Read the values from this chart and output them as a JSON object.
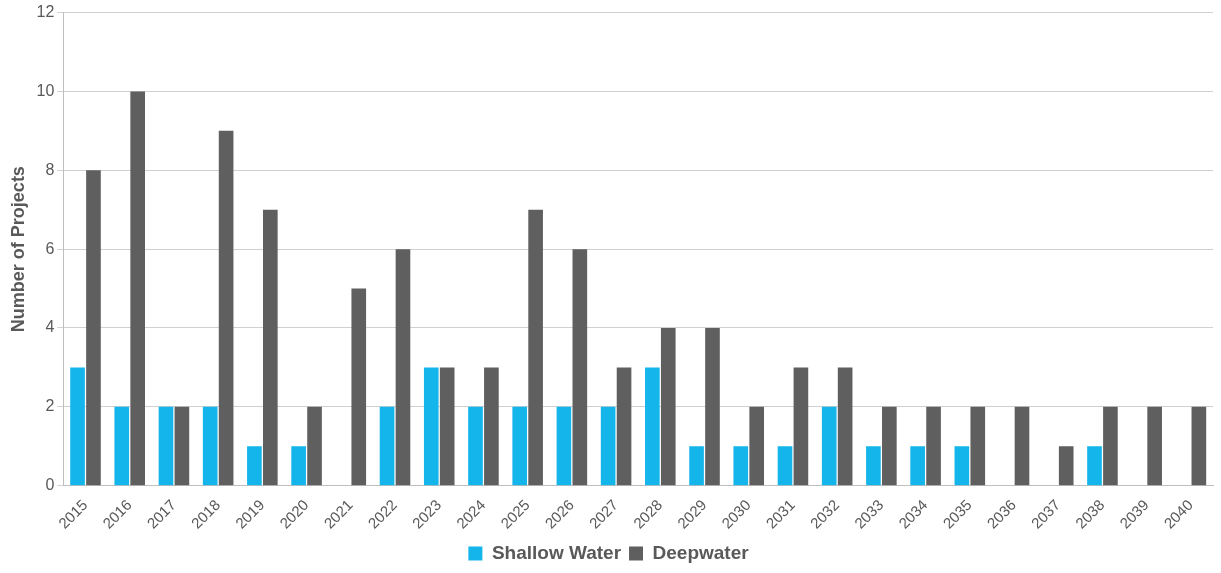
{
  "chart_data": {
    "type": "bar",
    "ylabel": "Number of Projects",
    "categories": [
      "2015",
      "2016",
      "2017",
      "2018",
      "2019",
      "2020",
      "2021",
      "2022",
      "2023",
      "2024",
      "2025",
      "2026",
      "2027",
      "2028",
      "2029",
      "2030",
      "2031",
      "2032",
      "2033",
      "2034",
      "2035",
      "2036",
      "2037",
      "2038",
      "2039",
      "2040"
    ],
    "series": [
      {
        "name": "Shallow Water",
        "color": "#13b5ea",
        "values": [
          3,
          2,
          2,
          2,
          1,
          1,
          0,
          2,
          3,
          2,
          2,
          2,
          2,
          3,
          1,
          1,
          1,
          2,
          1,
          1,
          1,
          0,
          0,
          1,
          0,
          0
        ]
      },
      {
        "name": "Deepwater",
        "color": "#5f5f5f",
        "values": [
          8,
          10,
          2,
          9,
          7,
          2,
          5,
          6,
          3,
          3,
          7,
          6,
          3,
          4,
          4,
          2,
          3,
          3,
          2,
          2,
          2,
          2,
          1,
          2,
          2,
          2
        ]
      }
    ],
    "ylim": [
      0,
      12
    ],
    "yticks": [
      0,
      2,
      4,
      6,
      8,
      10,
      12
    ],
    "grid": "y",
    "legend": "bottom"
  }
}
